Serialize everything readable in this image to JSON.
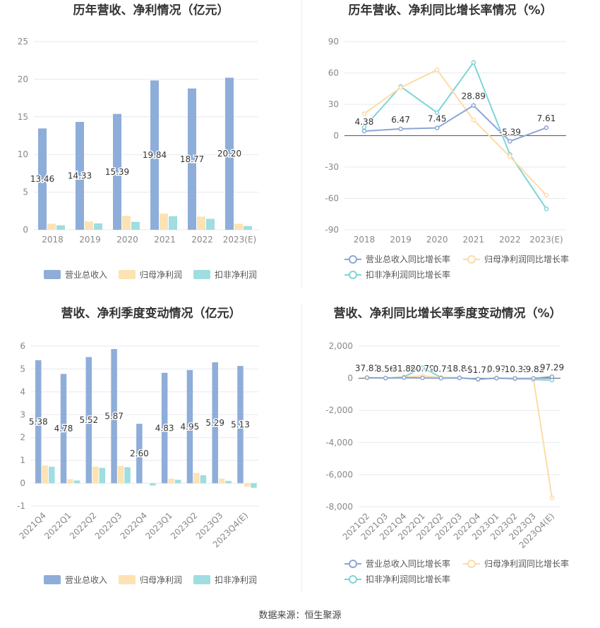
{
  "source_label": "数据来源：恒生聚源",
  "colors": {
    "revenue": "#8eadd9",
    "net_profit": "#fde2b3",
    "deducted_profit": "#9fdde0",
    "revenue_line": "#8ea6d3",
    "net_profit_line": "#fcdca6",
    "deducted_line": "#7fd4d8",
    "grid": "#e6e9ef",
    "axis_text": "#888888",
    "title": "#333333"
  },
  "chart_data": [
    {
      "type": "bar",
      "title": "历年营收、净利情况（亿元）",
      "categories": [
        "2018",
        "2019",
        "2020",
        "2021",
        "2022",
        "2023(E)"
      ],
      "ylim": [
        0,
        25
      ],
      "yticks": [
        0,
        5,
        10,
        15,
        20,
        25
      ],
      "series": [
        {
          "name": "营业总收入",
          "values": [
            13.46,
            14.33,
            15.39,
            19.84,
            18.77,
            20.2
          ],
          "labels": [
            "13.46",
            "14.33",
            "15.39",
            "19.84",
            "18.77",
            "20.20"
          ]
        },
        {
          "name": "归母净利润",
          "values": [
            0.8,
            1.1,
            1.85,
            2.15,
            1.75,
            0.8
          ]
        },
        {
          "name": "扣非净利润",
          "values": [
            0.6,
            0.85,
            1.05,
            1.8,
            1.45,
            0.5
          ]
        }
      ],
      "legend": "bottom"
    },
    {
      "type": "line",
      "title": "历年营收、净利同比增长率情况（%）",
      "categories": [
        "2018",
        "2019",
        "2020",
        "2021",
        "2022",
        "2023(E)"
      ],
      "ylim": [
        -90,
        90
      ],
      "yticks": [
        "-90",
        "-60",
        "-30",
        "0",
        "30",
        "60",
        "90"
      ],
      "series": [
        {
          "name": "营业总收入同比增长率",
          "values": [
            4.38,
            6.47,
            7.45,
            28.89,
            -5.39,
            7.61
          ],
          "labels": [
            "4.38",
            "6.47",
            "7.45",
            "28.89",
            "-5.39",
            "7.61"
          ]
        },
        {
          "name": "归母净利润同比增长率",
          "values": [
            21,
            46,
            63,
            15,
            -20,
            -57
          ]
        },
        {
          "name": "扣非净利润同比增长率",
          "values": [
            8,
            47,
            22,
            70,
            -18,
            -70
          ]
        }
      ],
      "legend": "bottom"
    },
    {
      "type": "bar",
      "title": "营收、净利季度变动情况（亿元）",
      "categories": [
        "2021Q4",
        "2022Q1",
        "2022Q2",
        "2022Q3",
        "2022Q4",
        "2023Q1",
        "2023Q2",
        "2023Q3",
        "2023Q4(E)"
      ],
      "ylim": [
        -1,
        6
      ],
      "yticks": [
        -1,
        0,
        1,
        2,
        3,
        4,
        5,
        6
      ],
      "series": [
        {
          "name": "营业总收入",
          "values": [
            5.38,
            4.78,
            5.52,
            5.87,
            2.6,
            4.83,
            4.95,
            5.29,
            5.13
          ],
          "labels": [
            "5.38",
            "4.78",
            "5.52",
            "5.87",
            "2.60",
            "4.83",
            "4.95",
            "5.29",
            "5.13"
          ]
        },
        {
          "name": "归母净利润",
          "values": [
            0.78,
            0.18,
            0.73,
            0.76,
            0.0,
            0.2,
            0.45,
            0.2,
            -0.15
          ]
        },
        {
          "name": "扣非净利润",
          "values": [
            0.72,
            0.12,
            0.67,
            0.7,
            -0.1,
            0.15,
            0.35,
            0.1,
            -0.2
          ]
        }
      ],
      "legend": "bottom"
    },
    {
      "type": "line",
      "title": "营收、净利同比增长率季度变动情况（%）",
      "categories": [
        "2021Q2",
        "2021Q3",
        "2021Q4",
        "2022Q1",
        "2022Q2",
        "2022Q3",
        "2022Q4",
        "2023Q1",
        "2023Q2",
        "2023Q3",
        "2023Q4(E)"
      ],
      "ylim": [
        -8000,
        2000
      ],
      "yticks": [
        "-8,000",
        "-6,000",
        "-4,000",
        "-2,000",
        "0",
        "2,000"
      ],
      "series": [
        {
          "name": "营业总收入同比增长率",
          "values": [
            37.81,
            8.56,
            31.86,
            20.79,
            -0.75,
            18.84,
            -51.7,
            0.97,
            -10.33,
            -9.82,
            97.29
          ],
          "labels": [
            "37.81",
            "8.56",
            "31.86",
            "20.79",
            "-0.75",
            "18.84",
            "-51.70",
            "0.97",
            "-10.33",
            "-9.82",
            "97.29"
          ]
        },
        {
          "name": "归母净利润同比增长率",
          "values": [
            20,
            15,
            60,
            150,
            40,
            30,
            -60,
            20,
            -40,
            -60,
            -7450
          ]
        },
        {
          "name": "扣非净利润同比增长率",
          "values": [
            25,
            10,
            80,
            650,
            50,
            20,
            -80,
            10,
            -50,
            -80,
            -120
          ]
        }
      ],
      "legend": "bottom"
    }
  ]
}
